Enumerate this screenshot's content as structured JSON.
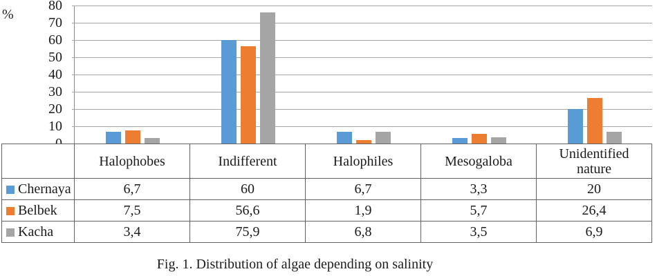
{
  "figure": {
    "caption": "Fig. 1. Distribution of algae depending on salinity"
  },
  "chart_data": {
    "type": "bar",
    "title": "",
    "xlabel": "",
    "ylabel": "%",
    "ylim": [
      0,
      80
    ],
    "ytick_step": 10,
    "yticks": [
      "0",
      "10",
      "20",
      "30",
      "40",
      "50",
      "60",
      "70",
      "80"
    ],
    "grid": true,
    "legend_position": "data-table-left",
    "decimal_separator": ",",
    "categories": [
      "Halophobes",
      "Indifferent",
      "Halophiles",
      "Mesogaloba",
      "Unidentified nature"
    ],
    "series": [
      {
        "name": "Chernaya",
        "color": "#5B9BD5",
        "values": [
          6.7,
          60,
          6.7,
          3.3,
          20
        ]
      },
      {
        "name": "Belbek",
        "color": "#ED7D31",
        "values": [
          7.5,
          56.6,
          1.9,
          5.7,
          26.4
        ]
      },
      {
        "name": "Kacha",
        "color": "#A5A5A5",
        "values": [
          3.4,
          75.9,
          6.8,
          3.5,
          6.9
        ]
      }
    ]
  },
  "style_colors": {
    "gridline": "#a6a6a6",
    "axis_line": "#8a8a8a",
    "table_border": "#606060",
    "text": "#1b1b1b"
  }
}
